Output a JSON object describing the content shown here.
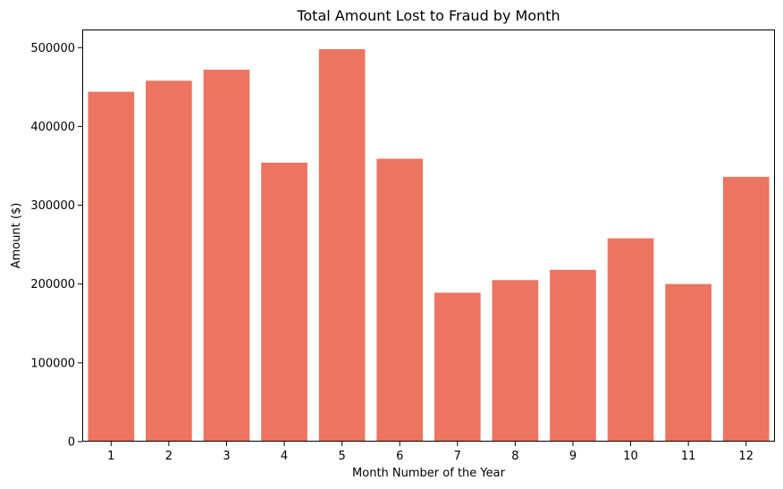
{
  "chart_data": {
    "type": "bar",
    "title": "Total Amount Lost to Fraud by Month",
    "xlabel": "Month Number of the Year",
    "ylabel": "Amount ($)",
    "categories": [
      "1",
      "2",
      "3",
      "4",
      "5",
      "6",
      "7",
      "8",
      "9",
      "10",
      "11",
      "12"
    ],
    "values": [
      444000,
      458000,
      472000,
      354000,
      498000,
      359000,
      189000,
      205000,
      218000,
      258000,
      200000,
      336000
    ],
    "ylim": [
      0,
      523000
    ],
    "yticks": [
      0,
      100000,
      200000,
      300000,
      400000,
      500000
    ],
    "ytick_labels": [
      "0",
      "100000",
      "200000",
      "300000",
      "400000",
      "500000"
    ],
    "grid": false,
    "bar_color": "#ec7460"
  }
}
